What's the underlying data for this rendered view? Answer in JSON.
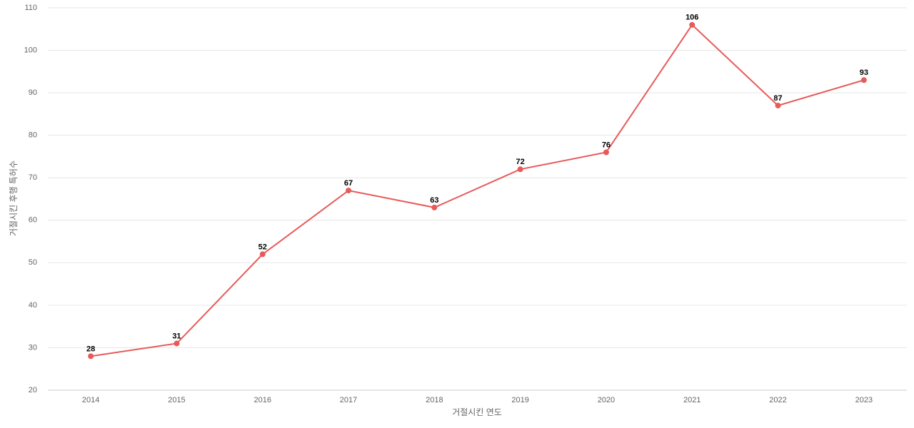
{
  "chart_data": {
    "type": "line",
    "categories": [
      "2014",
      "2015",
      "2016",
      "2017",
      "2018",
      "2019",
      "2020",
      "2021",
      "2022",
      "2023"
    ],
    "series": [
      {
        "name": "거절시킨 후행 특허수",
        "color": "#e85a5a",
        "values": [
          28,
          31,
          52,
          67,
          63,
          72,
          76,
          106,
          87,
          93
        ]
      }
    ],
    "x_label": "거절시킨 연도",
    "y_label": "거절시킨 후행 특허수",
    "ylim": [
      20,
      110
    ],
    "yticks": [
      20,
      30,
      40,
      50,
      60,
      70,
      80,
      90,
      100,
      110
    ],
    "grid": true
  }
}
